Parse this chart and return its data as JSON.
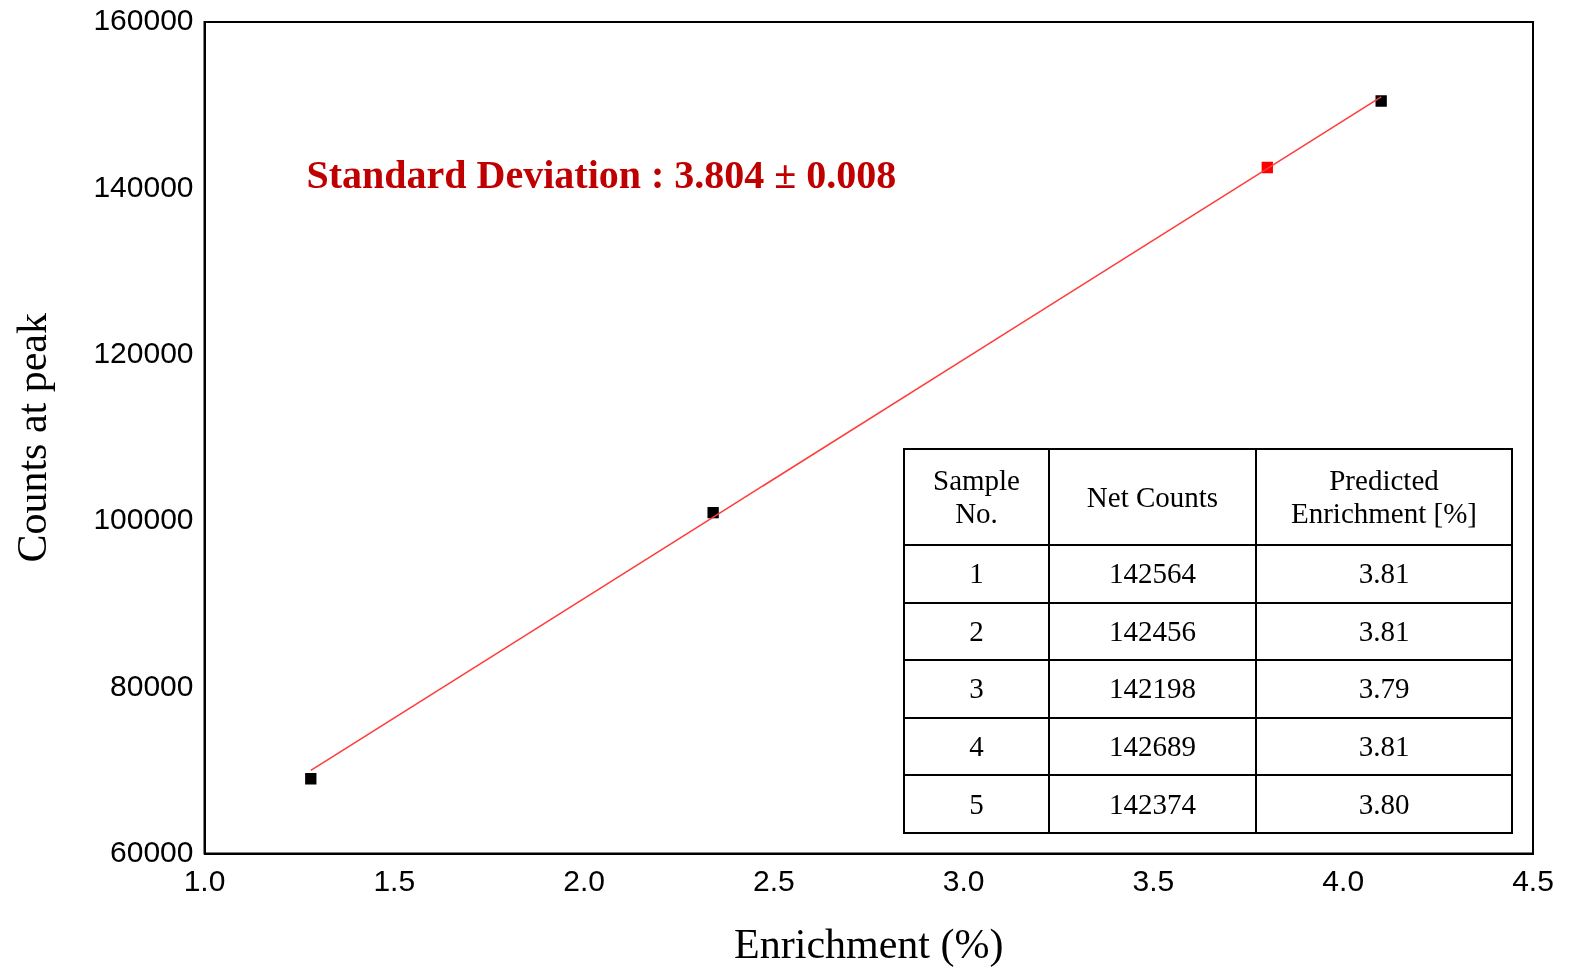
{
  "chart_data": {
    "type": "scatter",
    "xlabel": "Enrichment (%)",
    "ylabel": "Counts at peak",
    "xlim": [
      1.0,
      4.5
    ],
    "xticks": [
      {
        "value": 1,
        "label": "1.0"
      },
      {
        "value": 1.5,
        "label": "1.5"
      },
      {
        "value": 2,
        "label": "2.0"
      },
      {
        "value": 2.5,
        "label": "2.5"
      },
      {
        "value": 3,
        "label": "3.0"
      },
      {
        "value": 3.5,
        "label": "3.5"
      },
      {
        "value": 4,
        "label": "4.0"
      },
      {
        "value": 4.5,
        "label": "4.5"
      }
    ],
    "ylim": [
      60000,
      160000
    ],
    "yticks": [
      60000,
      80000,
      100000,
      120000,
      140000,
      160000
    ],
    "grid": false,
    "legend": false,
    "marker": "square",
    "annotations": [
      "Standard Deviation : 3.804 ± 0.008",
      "Sample No.",
      "Net Counts",
      "Predicted Enrichment [%]",
      "1",
      "142564",
      "3.81",
      "2",
      "142456",
      "3.81",
      "3",
      "142198",
      "3.79",
      "4",
      "142689",
      "3.81",
      "5",
      "142374",
      "3.80"
    ],
    "series": [
      {
        "type": "line",
        "color": "#ff3b3b",
        "x": [
          1.28,
          4.1
        ],
        "values": [
          70000,
          151000
        ],
        "marker": "none",
        "line_style": "solid"
      },
      {
        "type": "scatter",
        "color": "#000000",
        "x": [
          1.28,
          2.34,
          4.1
        ],
        "values": [
          69000,
          101000,
          150500
        ]
      },
      {
        "type": "scatter",
        "color": "#ff0000",
        "x": [
          3.8
        ],
        "values": [
          142500
        ]
      }
    ]
  }
}
